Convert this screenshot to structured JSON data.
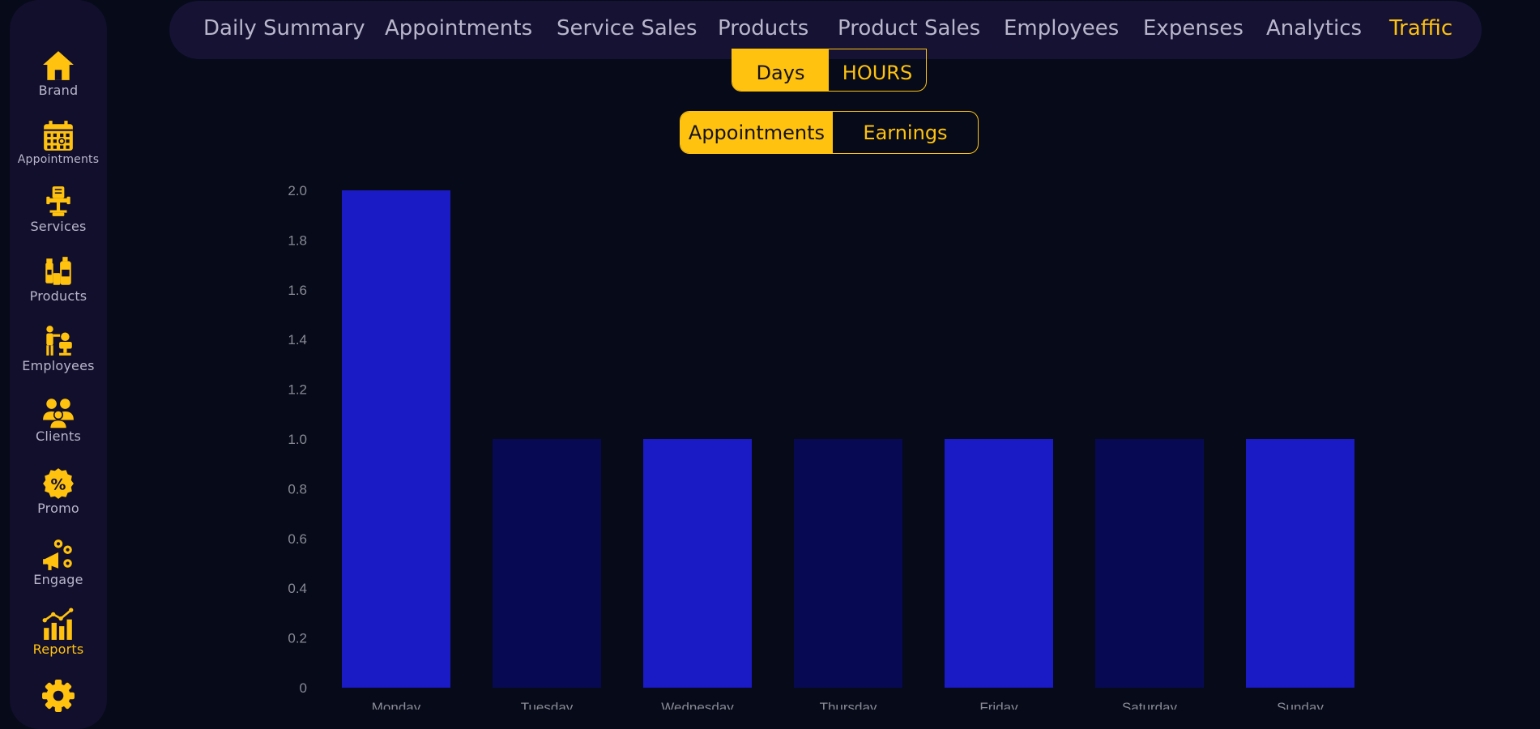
{
  "sidebar": {
    "items": [
      {
        "label": "Brand",
        "icon": "home-icon"
      },
      {
        "label": "Appointments",
        "icon": "calendar-icon"
      },
      {
        "label": "Services",
        "icon": "barber-chair-icon"
      },
      {
        "label": "Products",
        "icon": "product-bottles-icon"
      },
      {
        "label": "Employees",
        "icon": "stylist-icon"
      },
      {
        "label": "Clients",
        "icon": "clients-group-icon"
      },
      {
        "label": "Promo",
        "icon": "percent-badge-icon"
      },
      {
        "label": "Engage",
        "icon": "megaphone-icon"
      },
      {
        "label": "Reports",
        "icon": "chart-growth-icon"
      },
      {
        "label": "",
        "icon": "gear-icon"
      }
    ],
    "active": "Reports"
  },
  "topnav": {
    "tabs": [
      "Daily Summary",
      "Appointments",
      "Service Sales",
      "Products",
      "Product Sales",
      "Employees",
      "Expenses",
      "Analytics",
      "Traffic"
    ],
    "active": "Traffic"
  },
  "period_toggle": {
    "options": [
      "Days",
      "HOURS"
    ],
    "selected": "Days"
  },
  "metric_toggle": {
    "options": [
      "Appointments",
      "Earnings"
    ],
    "selected": "Appointments"
  },
  "colors": {
    "accent": "#ffc20e",
    "bar_bright": "#1a1bc4",
    "bar_dark": "#070a52",
    "background": "#060a19",
    "panel": "#151233"
  },
  "chart_data": {
    "type": "bar",
    "categories": [
      "Monday",
      "Tuesday",
      "Wednesday",
      "Thursday",
      "Friday",
      "Saturday",
      "Sunday"
    ],
    "values": [
      2,
      1,
      1,
      1,
      1,
      1,
      1
    ],
    "ylim": [
      0,
      2
    ],
    "yticks": [
      "0",
      "0.2",
      "0.4",
      "0.6",
      "0.8",
      "1.0",
      "1.2",
      "1.4",
      "1.6",
      "1.8",
      "2.0"
    ],
    "grid": false,
    "bar_colors": [
      "#1a1bc4",
      "#070a52",
      "#1a1bc4",
      "#070a52",
      "#1a1bc4",
      "#070a52",
      "#1a1bc4"
    ]
  }
}
